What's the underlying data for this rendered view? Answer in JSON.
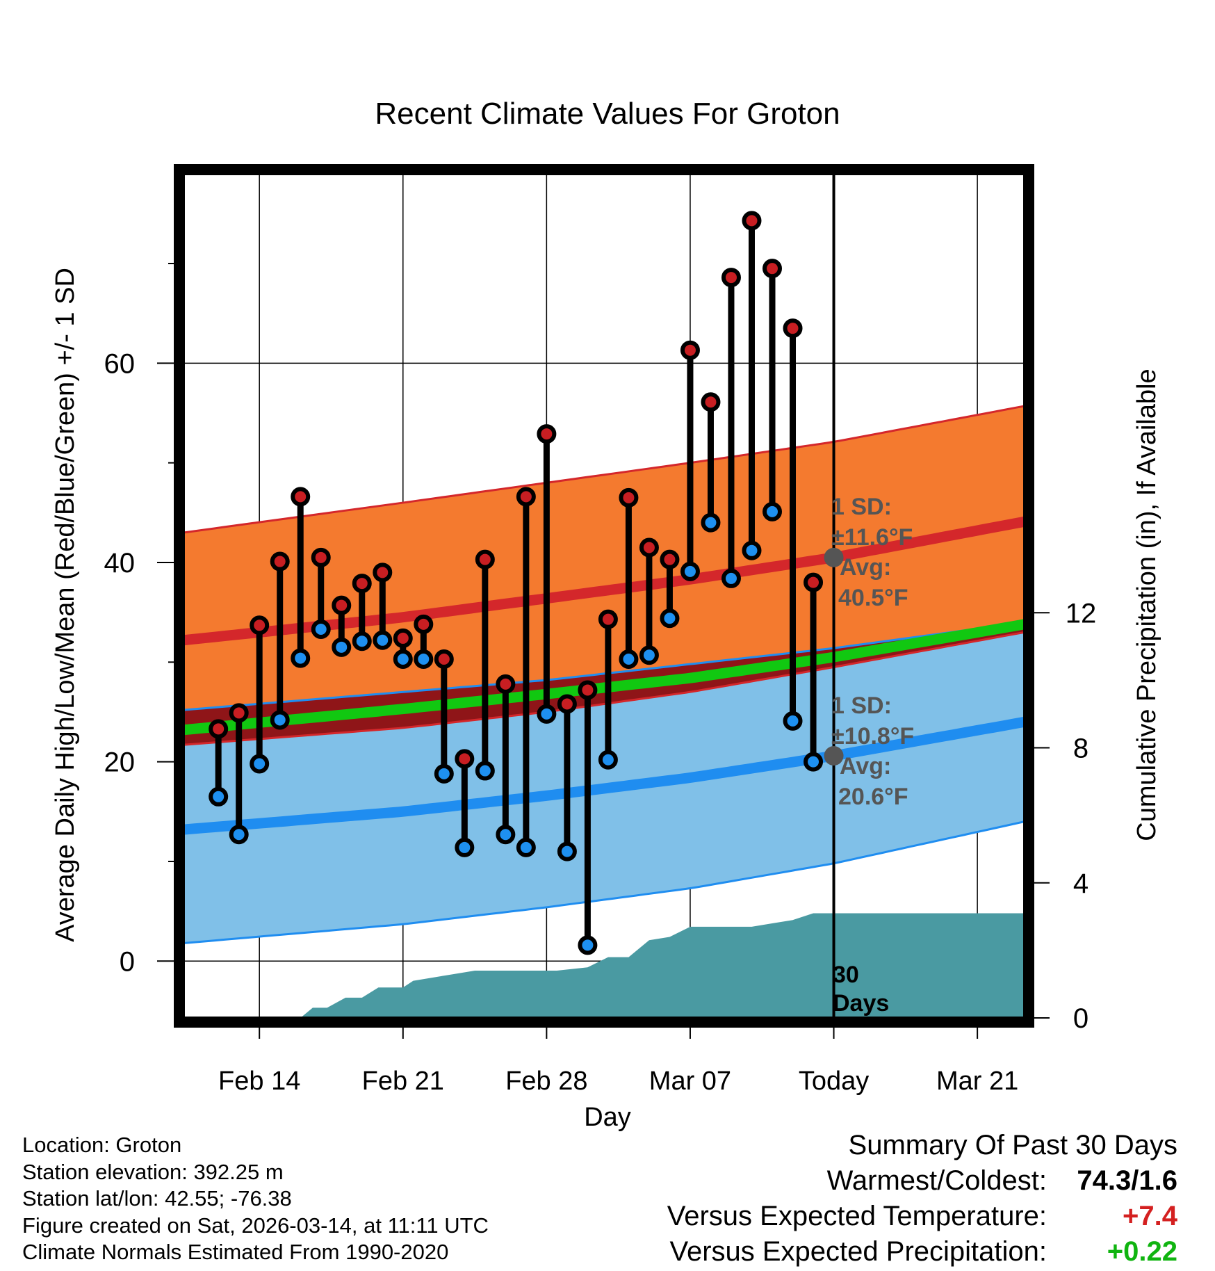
{
  "chart_data": {
    "type": "line",
    "title": "Recent Climate Values For Groton",
    "xlabel": "Day",
    "ylabel_left": "Average Daily High/Low/Mean (Red/Blue/Green) +/- 1 SD",
    "ylabel_right": "Cumulative Precipitation (in), If Available",
    "ylim_left": [
      -5.7,
      79
    ],
    "ylim_right": [
      0,
      25
    ],
    "xlim_days": [
      -31.7,
      9.3
    ],
    "left_ticks": [
      0,
      20,
      40,
      60
    ],
    "right_ticks": [
      0,
      4,
      8,
      12
    ],
    "x_ticks": [
      {
        "day": -28,
        "label": "Feb 14"
      },
      {
        "day": -21,
        "label": "Feb 21"
      },
      {
        "day": -14,
        "label": "Feb 28"
      },
      {
        "day": -7,
        "label": "Mar 07"
      },
      {
        "day": 0,
        "label": "Today"
      },
      {
        "day": 7,
        "label": "Mar 21"
      }
    ],
    "today_line_label": [
      "30",
      "Days"
    ],
    "normals": {
      "days": [
        -31.7,
        -21,
        -14,
        -7,
        0,
        9.3
      ],
      "high_avg": [
        32.2,
        34.5,
        36.4,
        38.3,
        40.5,
        44.1
      ],
      "high_upper": [
        43.0,
        46.0,
        48.0,
        50.0,
        52.1,
        55.7
      ],
      "high_lower": [
        21.7,
        23.4,
        25.0,
        27.0,
        29.5,
        33.0
      ],
      "low_avg": [
        13.2,
        15.0,
        16.6,
        18.4,
        20.6,
        24.0
      ],
      "low_upper": [
        25.2,
        27.0,
        28.2,
        29.8,
        31.4,
        34.0
      ],
      "low_lower": [
        1.8,
        3.7,
        5.4,
        7.3,
        9.8,
        14.0
      ],
      "mean_avg": [
        23.2,
        25.3,
        26.8,
        28.4,
        30.5,
        33.8
      ]
    },
    "observed": {
      "days": [
        -30,
        -29,
        -28,
        -27,
        -26,
        -25,
        -24,
        -23,
        -22,
        -21,
        -20,
        -19,
        -18,
        -17,
        -16,
        -15,
        -14,
        -13,
        -12,
        -11,
        -10,
        -9,
        -8,
        -7,
        -6,
        -5,
        -4,
        -3,
        -2,
        -1
      ],
      "highs": [
        23.3,
        24.9,
        33.7,
        40.1,
        46.6,
        40.5,
        35.7,
        37.9,
        39.0,
        32.4,
        33.8,
        30.3,
        20.3,
        40.3,
        27.8,
        46.6,
        52.9,
        25.8,
        27.2,
        34.3,
        46.5,
        41.5,
        40.3,
        61.3,
        56.1,
        68.6,
        74.3,
        69.5,
        63.5,
        38.0
      ],
      "lows": [
        16.5,
        12.7,
        19.8,
        24.2,
        30.4,
        33.3,
        31.5,
        32.1,
        32.2,
        30.3,
        30.3,
        18.8,
        11.4,
        19.1,
        12.7,
        11.4,
        24.8,
        11.0,
        1.6,
        20.2,
        30.3,
        30.7,
        34.4,
        39.1,
        44.0,
        38.4,
        41.2,
        45.1,
        24.1,
        20.0
      ]
    },
    "precip_cumulative": {
      "days": [
        -31.7,
        -26.0,
        -25.4,
        -24.7,
        -23.8,
        -23.0,
        -22.2,
        -21.0,
        -20.5,
        -19.5,
        -18.5,
        -17.5,
        -16.5,
        -15.5,
        -14.5,
        -13.5,
        -12.0,
        -11.0,
        -10.0,
        -9.0,
        -8.0,
        -7.0,
        -6.0,
        -5.0,
        -4.0,
        -3.0,
        -2.0,
        -1.0,
        0.0,
        9.3
      ],
      "values": [
        0.0,
        0.0,
        0.3,
        0.3,
        0.6,
        0.6,
        0.9,
        0.9,
        1.1,
        1.2,
        1.3,
        1.4,
        1.4,
        1.4,
        1.4,
        1.4,
        1.5,
        1.8,
        1.8,
        2.3,
        2.4,
        2.7,
        2.7,
        2.7,
        2.7,
        2.8,
        2.9,
        3.1,
        3.1,
        3.1
      ]
    },
    "high_annotation": {
      "line1": "1 SD:",
      "line2": "±11.6°F",
      "line3": "Avg:",
      "line4": "40.5°F",
      "value": 40.5
    },
    "low_annotation": {
      "line1": "1 SD:",
      "line2": "±10.8°F",
      "line3": "Avg:",
      "line4": "20.6°F",
      "value": 20.6
    }
  },
  "colors": {
    "high_band": "#f47a2f",
    "high_line": "#d4272b",
    "low_band": "#80c0e8",
    "low_line": "#1f8df0",
    "mean_line": "#11c811",
    "overlap": "#8f1518",
    "precip": "#4a9aa2",
    "high_dot": "#c81e22",
    "low_dot": "#1e90f0",
    "annotation": "#555555",
    "positive_temp": "#d42020",
    "positive_precip": "#10b410"
  },
  "meta": {
    "location": "Location: Groton",
    "elevation": "Station elevation: 392.25 m",
    "latlon": "Station lat/lon: 42.55; -76.38",
    "created": "Figure created on Sat, 2026-03-14, at 11:11 UTC",
    "normals": "Climate Normals Estimated From 1990-2020"
  },
  "summary": {
    "title": "Summary Of Past 30 Days",
    "warmest_label": "Warmest/Coldest:",
    "warmest_value": "74.3/1.6",
    "temp_label": "Versus Expected Temperature:",
    "temp_value": "+7.4",
    "precip_label": "Versus Expected Precipitation:",
    "precip_value": "+0.22"
  }
}
